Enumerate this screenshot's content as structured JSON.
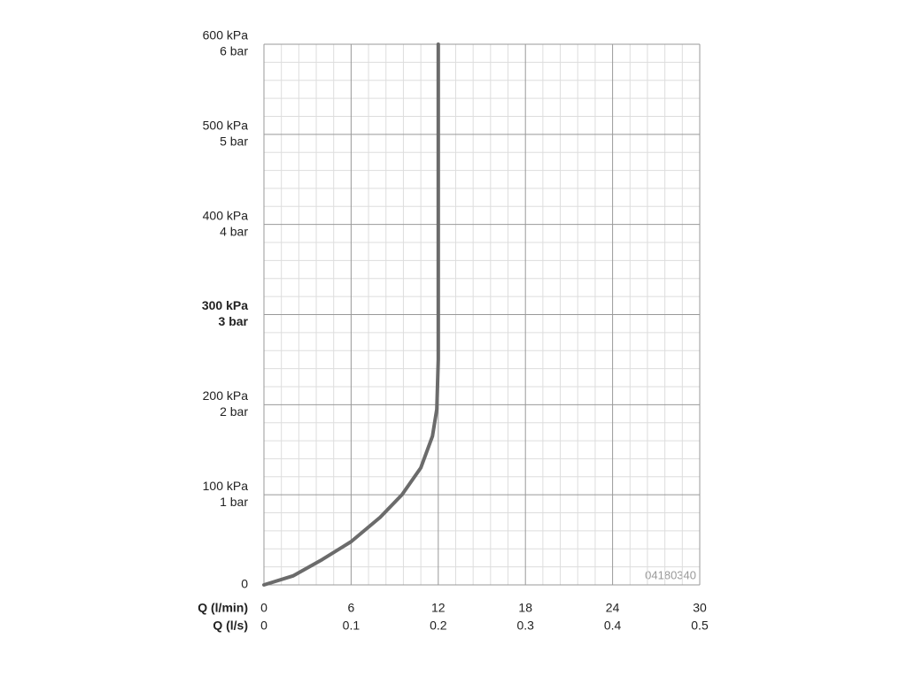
{
  "chart_data": {
    "type": "line",
    "x": [
      0,
      2,
      4,
      6,
      8,
      9.5,
      10.8,
      11.6,
      11.9,
      12,
      12
    ],
    "series": [
      {
        "name": null,
        "color": "#6b6b6b",
        "values": [
          0,
          10,
          28,
          48,
          75,
          100,
          130,
          165,
          195,
          250,
          600
        ]
      }
    ],
    "xlim": [
      0,
      30
    ],
    "xticks": [
      0,
      6,
      12,
      18,
      24,
      30
    ],
    "x_label": "Q (l/min)",
    "x2lim": [
      0,
      0.5
    ],
    "x2ticks": [
      0,
      0.1,
      0.2,
      0.3,
      0.4,
      0.5
    ],
    "x2_label": "Q (l/s)",
    "ylim": [
      0,
      600
    ],
    "yticks": [
      0,
      {
        "value": 100,
        "label": "100 kPa",
        "sublabel": "1 bar"
      },
      {
        "value": 200,
        "label": "200 kPa",
        "sublabel": "2 bar"
      },
      {
        "value": 300,
        "label": "300 kPa",
        "sublabel": "3 bar"
      },
      {
        "value": 400,
        "label": "400 kPa",
        "sublabel": "4 bar"
      },
      {
        "value": 500,
        "label": "500 kPa",
        "sublabel": "5 bar"
      },
      {
        "value": 600,
        "label": "600 kPa",
        "sublabel": "6 bar"
      }
    ],
    "bold_ytick": 300,
    "grid": true,
    "minor_divisions": 5,
    "annotation": "04180340"
  }
}
